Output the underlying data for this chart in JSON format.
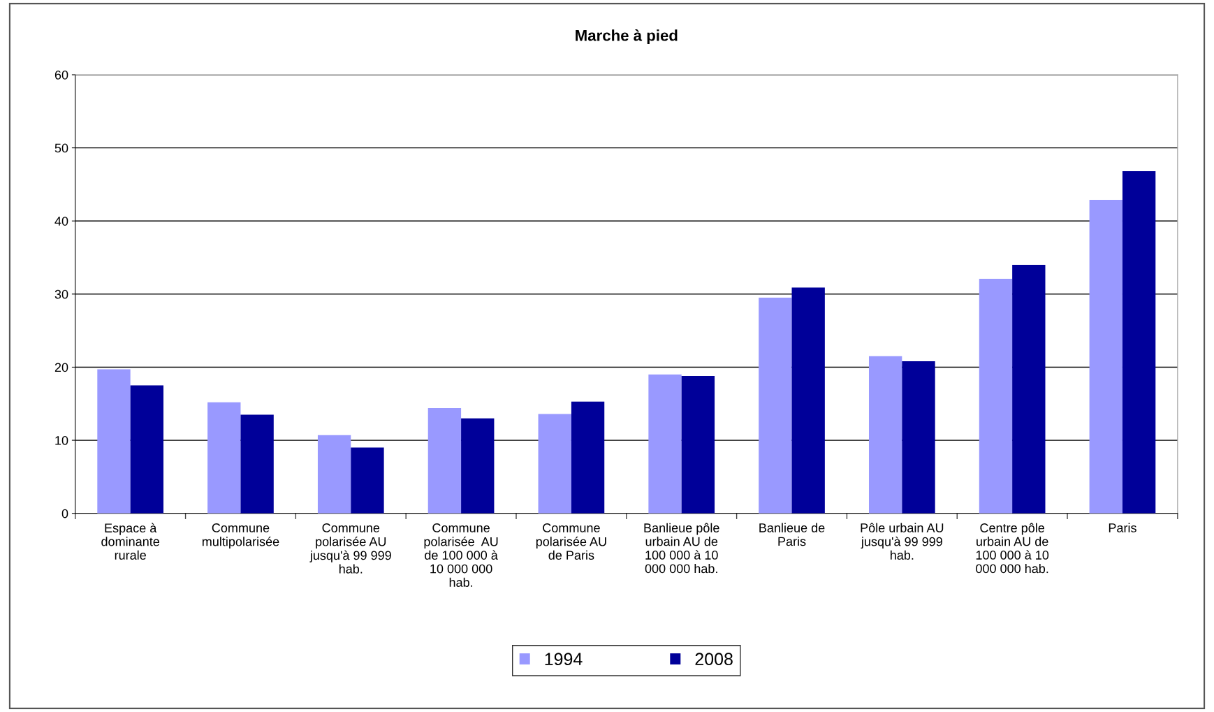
{
  "chart_data": {
    "type": "bar",
    "title": "Marche à pied",
    "categories": [
      "Espace à\ndominante\nrurale",
      "Commune\nmultipolarisée",
      "Commune\npolarisée AU\njusqu'à 99 999\nhab.",
      "Commune\npolarisée  AU\nde 100 000 à\n10 000 000\nhab.",
      "Commune\npolarisée AU\nde Paris",
      "Banlieue pôle\nurbain AU de\n100 000 à 10\n000 000 hab.",
      "Banlieue de\nParis",
      "Pôle urbain AU\njusqu'à 99 999\nhab.",
      "Centre pôle\nurbain AU de\n100 000 à 10\n000 000 hab.",
      "Paris"
    ],
    "series": [
      {
        "name": "1994",
        "color": "#9999ff",
        "values": [
          19.7,
          15.2,
          10.7,
          14.4,
          13.6,
          19.0,
          29.5,
          21.5,
          32.1,
          42.9
        ]
      },
      {
        "name": "2008",
        "color": "#000099",
        "values": [
          17.5,
          13.5,
          9.0,
          13.0,
          15.3,
          18.8,
          30.9,
          20.8,
          34.0,
          46.8
        ]
      }
    ],
    "ylim": [
      0,
      60
    ],
    "yticks": [
      0,
      10,
      20,
      30,
      40,
      50,
      60
    ],
    "grid": "y",
    "legend": "bottom"
  }
}
